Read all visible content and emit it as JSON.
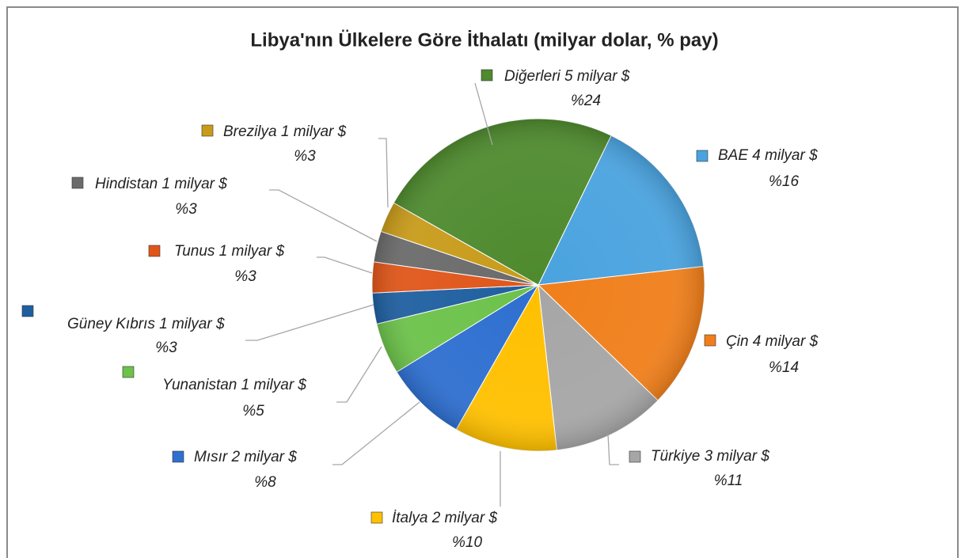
{
  "chart_data": {
    "type": "pie",
    "title": "Libya'nın Ülkelere Göre İthalatı  (milyar dolar, % pay)",
    "categories": [
      "BAE 4 milyar $",
      "Çin 4 milyar $",
      "Türkiye 3 milyar $",
      "İtalya 2 milyar $",
      "Mısır 2 milyar $",
      "Yunanistan 1 milyar $",
      "Güney Kıbrıs 1 milyar $",
      "Tunus 1 milyar $",
      "Hindistan 1 milyar $",
      "Brezilya 1 milyar $",
      "Diğerleri 5 milyar $"
    ],
    "values": [
      16,
      14,
      11,
      10,
      8,
      5,
      3,
      3,
      3,
      3,
      24
    ],
    "value_labels": [
      "%16",
      "%14",
      "%11",
      "%10",
      "%8",
      "%5",
      "%3",
      "%3",
      "%3",
      "%3",
      "%24"
    ],
    "colors": [
      "#4aa3df",
      "#f07f1b",
      "#a6a6a6",
      "#ffc000",
      "#2e6fd0",
      "#6cc24a",
      "#1f5fa0",
      "#e0561a",
      "#6b6b6b",
      "#c89b1a",
      "#4e8a2e"
    ]
  }
}
